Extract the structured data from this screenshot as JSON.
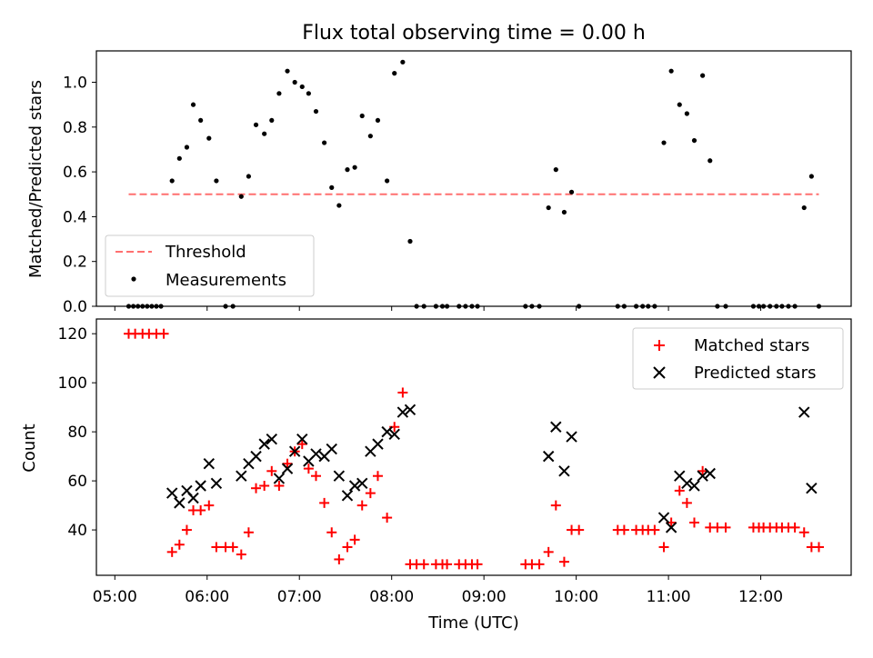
{
  "chart_data": [
    {
      "type": "scatter",
      "title": "Flux total observing time = 0.00 h",
      "xlabel": "",
      "ylabel": "Matched/Predicted stars",
      "xlim": [
        4.8,
        12.98
      ],
      "ylim": [
        0,
        1.14
      ],
      "yticks": [
        0.0,
        0.2,
        0.4,
        0.6,
        0.8,
        1.0
      ],
      "ytick_labels": [
        "0.0",
        "0.2",
        "0.4",
        "0.6",
        "0.8",
        "1.0"
      ],
      "legend_position": "lower-left",
      "threshold": {
        "name": "Threshold",
        "value": 0.5,
        "x_range": [
          5.15,
          12.63
        ],
        "color": "#ff7070"
      },
      "series": [
        {
          "name": "Measurements",
          "color": "#000000",
          "points": [
            [
              5.15,
              0
            ],
            [
              5.2,
              0
            ],
            [
              5.25,
              0
            ],
            [
              5.3,
              0
            ],
            [
              5.35,
              0
            ],
            [
              5.4,
              0
            ],
            [
              5.45,
              0
            ],
            [
              5.5,
              0
            ],
            [
              5.62,
              0.56
            ],
            [
              5.7,
              0.66
            ],
            [
              5.78,
              0.71
            ],
            [
              5.85,
              0.9
            ],
            [
              5.93,
              0.83
            ],
            [
              6.02,
              0.75
            ],
            [
              6.1,
              0.56
            ],
            [
              6.2,
              0
            ],
            [
              6.28,
              0
            ],
            [
              6.37,
              0.49
            ],
            [
              6.45,
              0.58
            ],
            [
              6.53,
              0.81
            ],
            [
              6.62,
              0.77
            ],
            [
              6.7,
              0.83
            ],
            [
              6.78,
              0.95
            ],
            [
              6.87,
              1.05
            ],
            [
              6.95,
              1.0
            ],
            [
              7.03,
              0.98
            ],
            [
              7.1,
              0.95
            ],
            [
              7.18,
              0.87
            ],
            [
              7.27,
              0.73
            ],
            [
              7.35,
              0.53
            ],
            [
              7.43,
              0.45
            ],
            [
              7.52,
              0.61
            ],
            [
              7.6,
              0.62
            ],
            [
              7.68,
              0.85
            ],
            [
              7.77,
              0.76
            ],
            [
              7.85,
              0.83
            ],
            [
              7.95,
              0.56
            ],
            [
              8.03,
              1.04
            ],
            [
              8.12,
              1.09
            ],
            [
              8.2,
              0.29
            ],
            [
              8.27,
              0
            ],
            [
              8.35,
              0
            ],
            [
              8.48,
              0
            ],
            [
              8.55,
              0
            ],
            [
              8.6,
              0
            ],
            [
              8.73,
              0
            ],
            [
              8.8,
              0
            ],
            [
              8.87,
              0
            ],
            [
              8.93,
              0
            ],
            [
              9.45,
              0
            ],
            [
              9.52,
              0
            ],
            [
              9.6,
              0
            ],
            [
              9.7,
              0.44
            ],
            [
              9.78,
              0.61
            ],
            [
              9.87,
              0.42
            ],
            [
              9.95,
              0.51
            ],
            [
              10.03,
              0
            ],
            [
              10.45,
              0
            ],
            [
              10.52,
              0
            ],
            [
              10.65,
              0
            ],
            [
              10.72,
              0
            ],
            [
              10.78,
              0
            ],
            [
              10.85,
              0
            ],
            [
              10.95,
              0.73
            ],
            [
              11.03,
              1.05
            ],
            [
              11.12,
              0.9
            ],
            [
              11.2,
              0.86
            ],
            [
              11.28,
              0.74
            ],
            [
              11.37,
              1.03
            ],
            [
              11.45,
              0.65
            ],
            [
              11.53,
              0
            ],
            [
              11.62,
              0
            ],
            [
              11.92,
              0
            ],
            [
              11.98,
              0
            ],
            [
              12.03,
              0
            ],
            [
              12.1,
              0
            ],
            [
              12.17,
              0
            ],
            [
              12.23,
              0
            ],
            [
              12.3,
              0
            ],
            [
              12.37,
              0
            ],
            [
              12.47,
              0.44
            ],
            [
              12.55,
              0.58
            ],
            [
              12.63,
              0
            ]
          ]
        }
      ]
    },
    {
      "type": "scatter",
      "title": "",
      "xlabel": "Time (UTC)",
      "ylabel": "Count",
      "xlim": [
        4.8,
        12.98
      ],
      "ylim": [
        21.5,
        126
      ],
      "yticks": [
        40,
        60,
        80,
        100,
        120
      ],
      "ytick_labels": [
        "40",
        "60",
        "80",
        "100",
        "120"
      ],
      "xticks": [
        5,
        6,
        7,
        8,
        9,
        10,
        11,
        12
      ],
      "xtick_labels": [
        "05:00",
        "06:00",
        "07:00",
        "08:00",
        "09:00",
        "10:00",
        "11:00",
        "12:00"
      ],
      "legend_position": "top-right",
      "series": [
        {
          "name": "Matched stars",
          "marker": "plus",
          "color": "#ff0000",
          "points": [
            [
              5.15,
              120
            ],
            [
              5.22,
              120
            ],
            [
              5.3,
              120
            ],
            [
              5.37,
              120
            ],
            [
              5.45,
              120
            ],
            [
              5.53,
              120
            ],
            [
              5.62,
              31
            ],
            [
              5.7,
              34
            ],
            [
              5.78,
              40
            ],
            [
              5.85,
              48
            ],
            [
              5.93,
              48
            ],
            [
              6.02,
              50
            ],
            [
              6.1,
              33
            ],
            [
              6.2,
              33
            ],
            [
              6.28,
              33
            ],
            [
              6.37,
              30
            ],
            [
              6.45,
              39
            ],
            [
              6.53,
              57
            ],
            [
              6.62,
              58
            ],
            [
              6.7,
              64
            ],
            [
              6.78,
              58
            ],
            [
              6.87,
              67
            ],
            [
              6.95,
              72
            ],
            [
              7.03,
              75
            ],
            [
              7.1,
              65
            ],
            [
              7.18,
              62
            ],
            [
              7.27,
              51
            ],
            [
              7.35,
              39
            ],
            [
              7.43,
              28
            ],
            [
              7.52,
              33
            ],
            [
              7.6,
              36
            ],
            [
              7.68,
              50
            ],
            [
              7.77,
              55
            ],
            [
              7.85,
              62
            ],
            [
              7.95,
              45
            ],
            [
              8.03,
              82
            ],
            [
              8.12,
              96
            ],
            [
              8.2,
              26
            ],
            [
              8.27,
              26
            ],
            [
              8.35,
              26
            ],
            [
              8.48,
              26
            ],
            [
              8.55,
              26
            ],
            [
              8.6,
              26
            ],
            [
              8.73,
              26
            ],
            [
              8.8,
              26
            ],
            [
              8.87,
              26
            ],
            [
              8.93,
              26
            ],
            [
              9.45,
              26
            ],
            [
              9.52,
              26
            ],
            [
              9.6,
              26
            ],
            [
              9.7,
              31
            ],
            [
              9.78,
              50
            ],
            [
              9.87,
              27
            ],
            [
              9.95,
              40
            ],
            [
              10.03,
              40
            ],
            [
              10.45,
              40
            ],
            [
              10.52,
              40
            ],
            [
              10.65,
              40
            ],
            [
              10.72,
              40
            ],
            [
              10.78,
              40
            ],
            [
              10.85,
              40
            ],
            [
              10.95,
              33
            ],
            [
              11.03,
              43
            ],
            [
              11.12,
              56
            ],
            [
              11.2,
              51
            ],
            [
              11.28,
              43
            ],
            [
              11.37,
              64
            ],
            [
              11.45,
              41
            ],
            [
              11.53,
              41
            ],
            [
              11.62,
              41
            ],
            [
              11.92,
              41
            ],
            [
              11.98,
              41
            ],
            [
              12.03,
              41
            ],
            [
              12.1,
              41
            ],
            [
              12.17,
              41
            ],
            [
              12.23,
              41
            ],
            [
              12.3,
              41
            ],
            [
              12.37,
              41
            ],
            [
              12.47,
              39
            ],
            [
              12.55,
              33
            ],
            [
              12.63,
              33
            ]
          ]
        },
        {
          "name": "Predicted stars",
          "marker": "x",
          "color": "#000000",
          "points": [
            [
              5.62,
              55
            ],
            [
              5.7,
              51
            ],
            [
              5.78,
              56
            ],
            [
              5.85,
              53
            ],
            [
              5.93,
              58
            ],
            [
              6.02,
              67
            ],
            [
              6.1,
              59
            ],
            [
              6.37,
              62
            ],
            [
              6.45,
              67
            ],
            [
              6.53,
              70
            ],
            [
              6.62,
              75
            ],
            [
              6.7,
              77
            ],
            [
              6.78,
              61
            ],
            [
              6.87,
              65
            ],
            [
              6.95,
              72
            ],
            [
              7.03,
              77
            ],
            [
              7.1,
              68
            ],
            [
              7.18,
              71
            ],
            [
              7.27,
              70
            ],
            [
              7.35,
              73
            ],
            [
              7.43,
              62
            ],
            [
              7.52,
              54
            ],
            [
              7.6,
              58
            ],
            [
              7.68,
              59
            ],
            [
              7.77,
              72
            ],
            [
              7.85,
              75
            ],
            [
              7.95,
              80
            ],
            [
              8.03,
              79
            ],
            [
              8.12,
              88
            ],
            [
              8.2,
              89
            ],
            [
              9.7,
              70
            ],
            [
              9.78,
              82
            ],
            [
              9.87,
              64
            ],
            [
              9.95,
              78
            ],
            [
              10.95,
              45
            ],
            [
              11.03,
              41
            ],
            [
              11.12,
              62
            ],
            [
              11.2,
              59
            ],
            [
              11.28,
              58
            ],
            [
              11.37,
              62
            ],
            [
              11.45,
              63
            ],
            [
              12.47,
              88
            ],
            [
              12.55,
              57
            ]
          ]
        }
      ]
    }
  ]
}
